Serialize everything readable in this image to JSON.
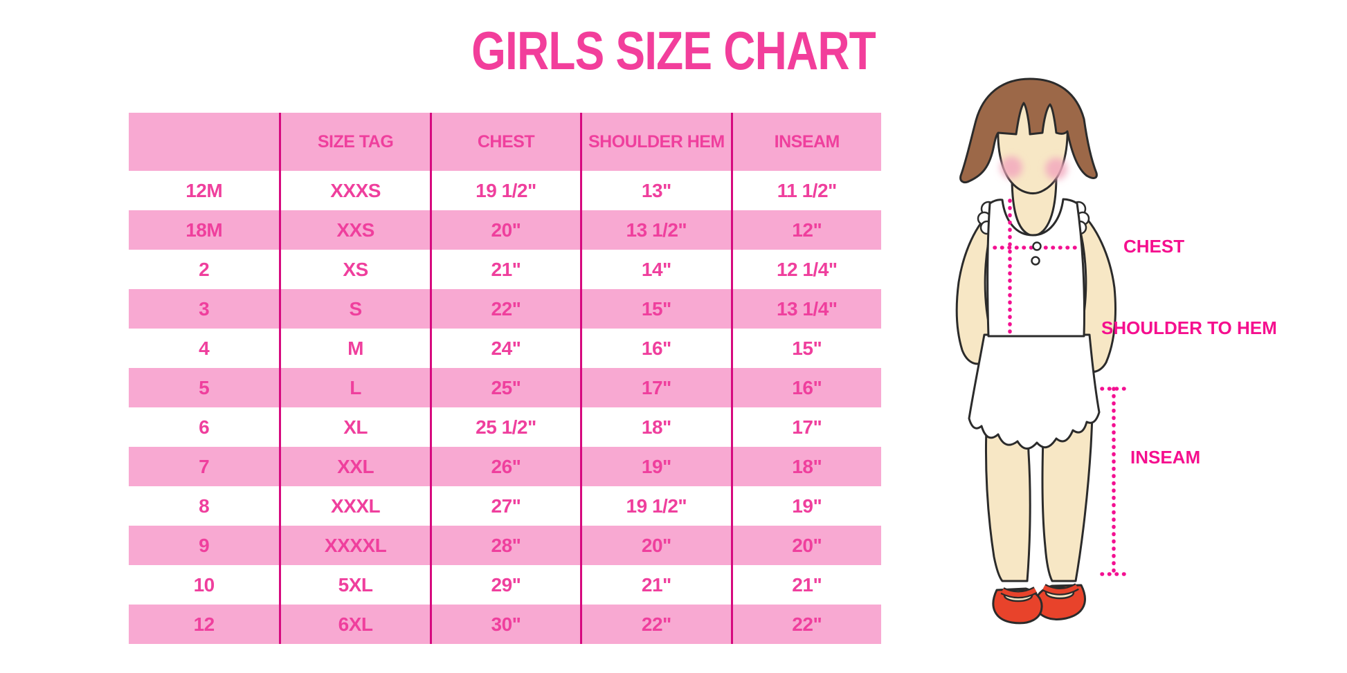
{
  "chart_data": {
    "type": "table",
    "title": "GIRLS SIZE CHART",
    "columns": [
      "",
      "SIZE TAG",
      "CHEST",
      "SHOULDER HEM",
      "INSEAM"
    ],
    "rows": [
      [
        "12M",
        "XXXS",
        "19 1/2\"",
        "13\"",
        "11 1/2\""
      ],
      [
        "18M",
        "XXS",
        "20\"",
        "13 1/2\"",
        "12\""
      ],
      [
        "2",
        "XS",
        "21\"",
        "14\"",
        "12 1/4\""
      ],
      [
        "3",
        "S",
        "22\"",
        "15\"",
        "13 1/4\""
      ],
      [
        "4",
        "M",
        "24\"",
        "16\"",
        "15\""
      ],
      [
        "5",
        "L",
        "25\"",
        "17\"",
        "16\""
      ],
      [
        "6",
        "XL",
        "25 1/2\"",
        "18\"",
        "17\""
      ],
      [
        "7",
        "XXL",
        "26\"",
        "19\"",
        "18\""
      ],
      [
        "8",
        "XXXL",
        "27\"",
        "19 1/2\"",
        "19\""
      ],
      [
        "9",
        "XXXXL",
        "28\"",
        "20\"",
        "20\""
      ],
      [
        "10",
        "5XL",
        "29\"",
        "21\"",
        "21\""
      ],
      [
        "12",
        "6XL",
        "30\"",
        "22\"",
        "22\""
      ]
    ],
    "layout_hints": {
      "striped_rows": "alternating white and pink, header pink",
      "column_dividers": "vertical magenta lines between columns"
    }
  },
  "diagram": {
    "labels": {
      "chest": "CHEST",
      "shoulder_to_hem": "SHOULDER TO HEM",
      "inseam": "INSEAM"
    }
  },
  "colors": {
    "title_pink": "#F23E9B",
    "row_pink": "#F8A9D2",
    "cell_text_pink": "#EF3F9D",
    "divider_magenta": "#D6097E",
    "label_magenta": "#F50F8E",
    "dotted_line_magenta": "#F31091",
    "hair_brown": "#9C6848",
    "skin": "#F7E7C5",
    "shoe_red": "#E8432B"
  }
}
